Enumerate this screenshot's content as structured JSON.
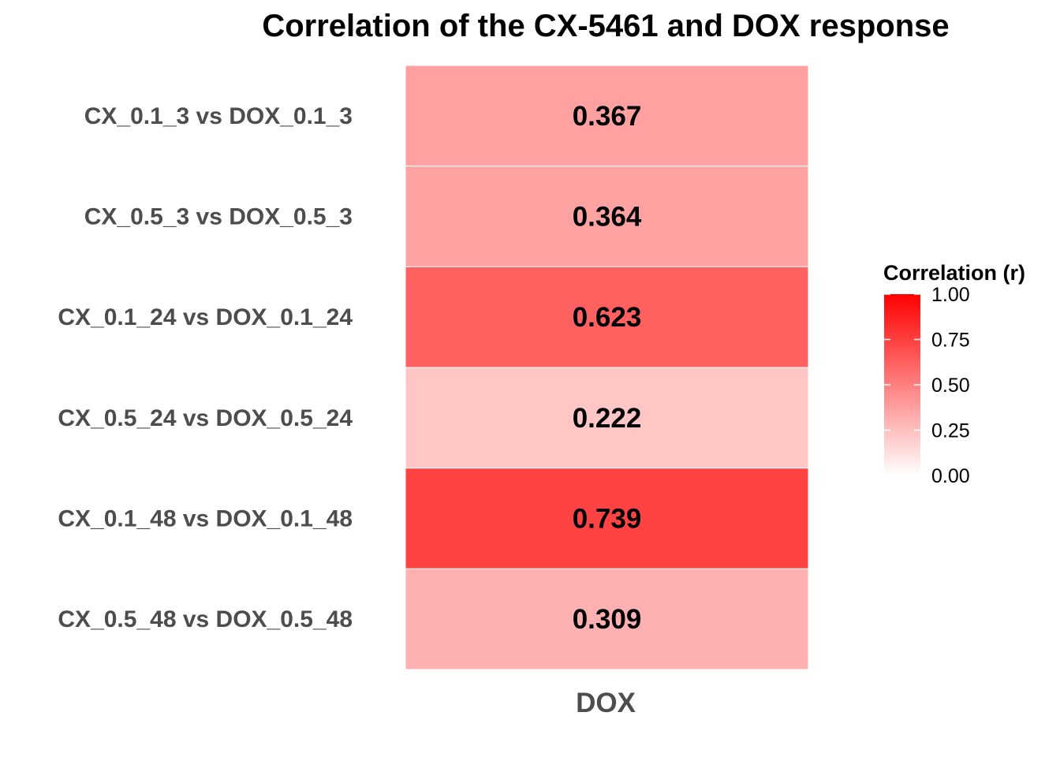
{
  "chart_data": {
    "type": "heatmap",
    "title": "Correlation of the CX-5461 and DOX response",
    "columns": [
      "DOX"
    ],
    "rows": [
      "CX_0.1_3 vs DOX_0.1_3",
      "CX_0.5_3 vs DOX_0.5_3",
      "CX_0.1_24 vs DOX_0.1_24",
      "CX_0.5_24 vs DOX_0.5_24",
      "CX_0.1_48 vs DOX_0.1_48",
      "CX_0.5_48 vs DOX_0.5_48"
    ],
    "values": [
      0.367,
      0.364,
      0.623,
      0.222,
      0.739,
      0.309
    ],
    "value_labels": [
      "0.367",
      "0.364",
      "0.623",
      "0.222",
      "0.739",
      "0.309"
    ],
    "legend": {
      "title": "Correlation (r)",
      "range": [
        0,
        1
      ],
      "ticks": [
        1.0,
        0.75,
        0.5,
        0.25,
        0.0
      ],
      "tick_labels": [
        "1.00",
        "0.75",
        "0.50",
        "0.25",
        "0.00"
      ],
      "low_color": "#ffffff",
      "high_color": "#ff0000",
      "placement": "right"
    },
    "grid": false
  }
}
